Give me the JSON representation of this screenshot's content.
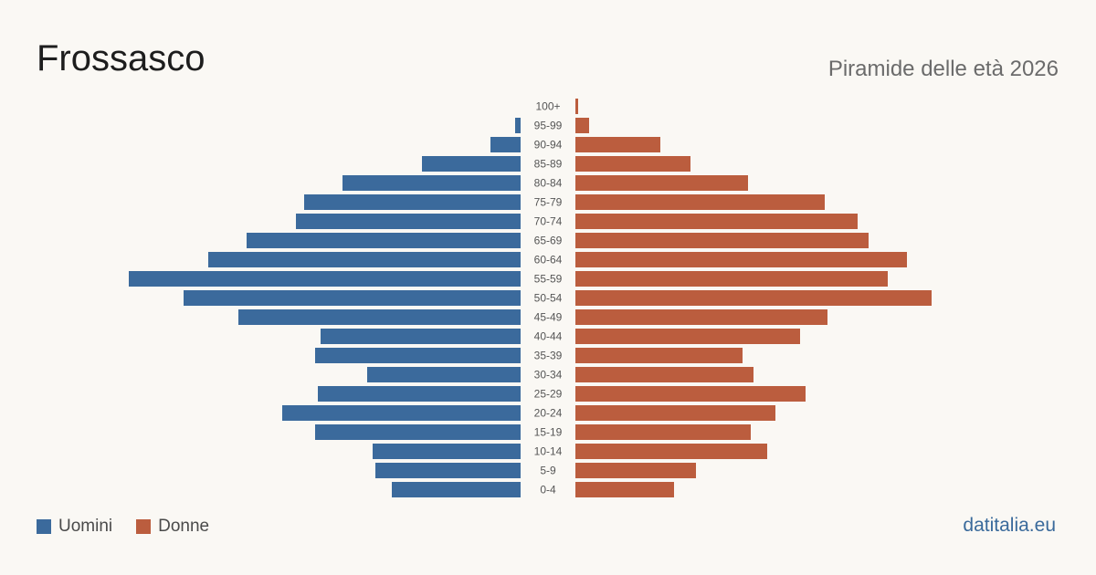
{
  "header": {
    "title": "Frossasco",
    "subtitle": "Piramide delle età 2026"
  },
  "legend": {
    "male_label": "Uomini",
    "female_label": "Donne"
  },
  "footer": {
    "source": "datitalia.eu"
  },
  "colors": {
    "male": "#3b6a9c",
    "female": "#bb5d3e",
    "background": "#faf8f4"
  },
  "chart_data": {
    "type": "bar",
    "orientation": "horizontal-pyramid",
    "categories": [
      "100+",
      "95-99",
      "90-94",
      "85-89",
      "80-84",
      "75-79",
      "70-74",
      "65-69",
      "60-64",
      "55-59",
      "50-54",
      "45-49",
      "40-44",
      "35-39",
      "30-34",
      "25-29",
      "20-24",
      "15-19",
      "10-14",
      "5-9",
      "0-4"
    ],
    "series": [
      {
        "name": "Uomini",
        "values": [
          0,
          2,
          11,
          36,
          65,
          79,
          82,
          100,
          114,
          143,
          123,
          103,
          73,
          75,
          56,
          74,
          87,
          75,
          54,
          53,
          47
        ]
      },
      {
        "name": "Donne",
        "values": [
          1,
          5,
          31,
          42,
          63,
          91,
          103,
          107,
          121,
          114,
          130,
          92,
          82,
          61,
          65,
          84,
          73,
          64,
          70,
          44,
          36
        ]
      }
    ],
    "title": "Piramide delle età 2026",
    "legend_position": "bottom-left",
    "grid": false
  }
}
